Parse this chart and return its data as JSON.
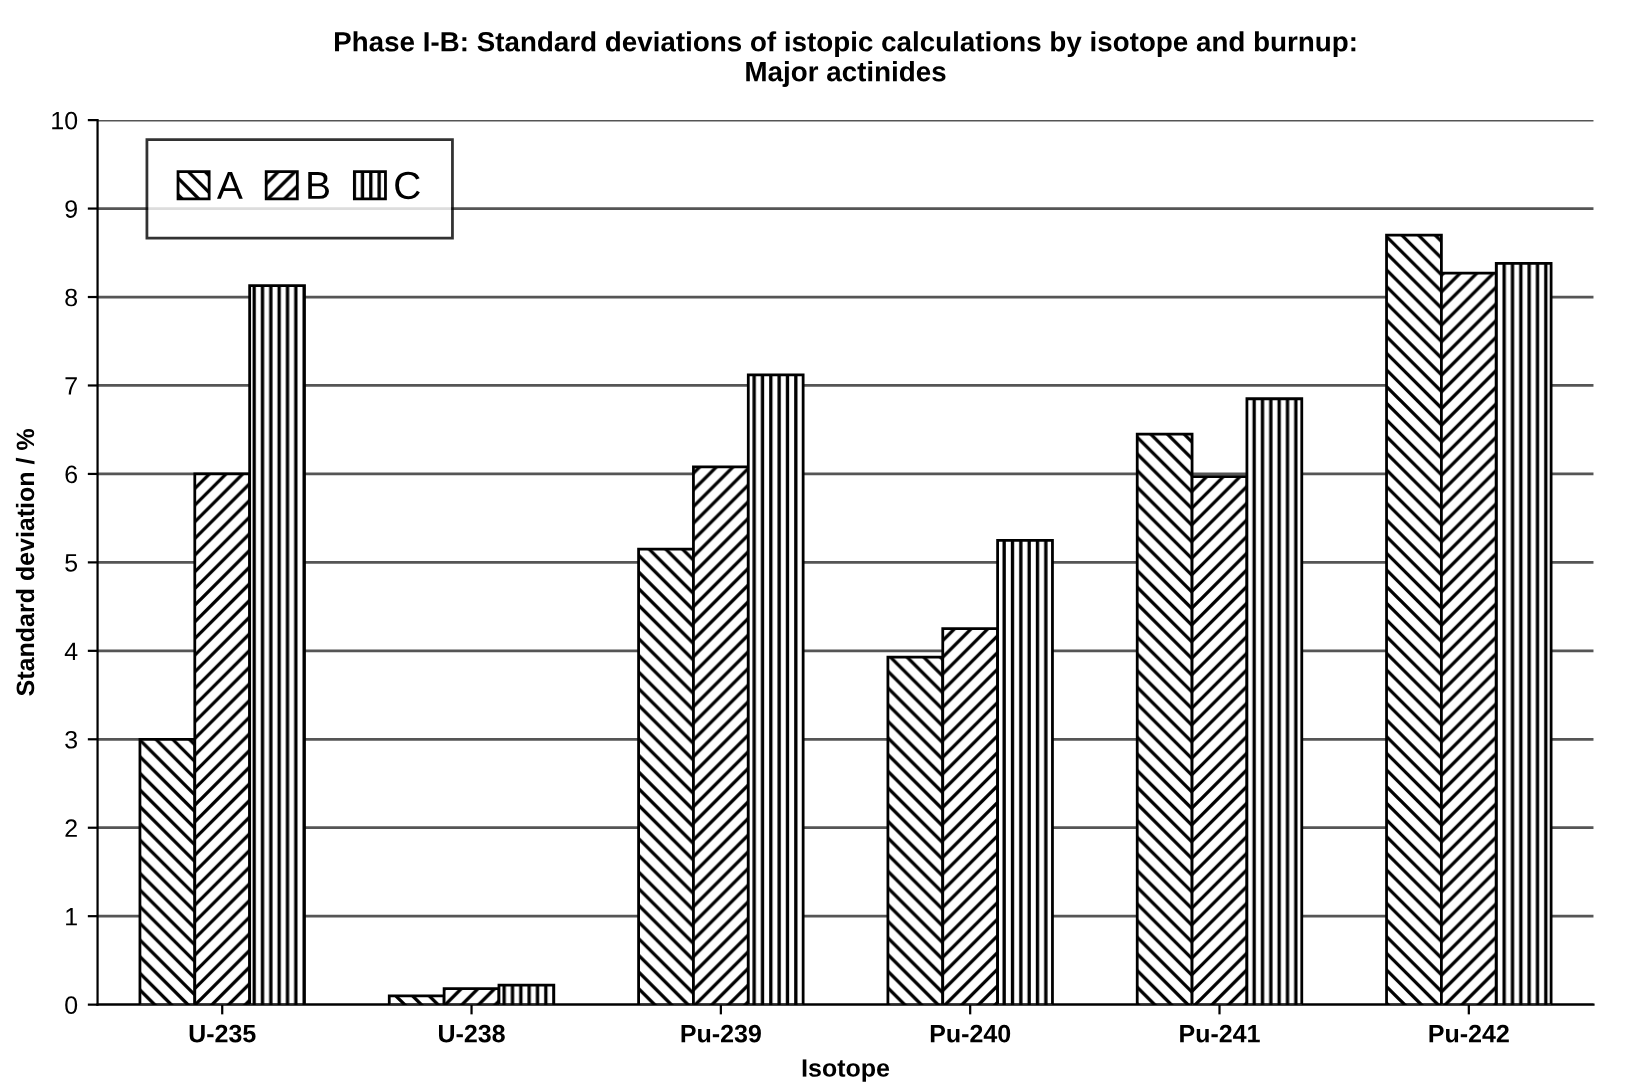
{
  "chart_data": {
    "type": "bar",
    "title": "Phase I-B: Standard deviations of istopic calculations by isotope and burnup:\nMajor actinides",
    "xlabel": "Isotope",
    "ylabel": "Standard deviation / %",
    "categories": [
      "U-235",
      "U-238",
      "Pu-239",
      "Pu-240",
      "Pu-241",
      "Pu-242"
    ],
    "series": [
      {
        "name": "A",
        "color": "#000000",
        "values": [
          3.0,
          0.1,
          5.15,
          3.93,
          6.45,
          8.7
        ]
      },
      {
        "name": "B",
        "color": "#000000",
        "values": [
          6.0,
          0.18,
          6.08,
          4.25,
          5.97,
          8.27
        ]
      },
      {
        "name": "C",
        "color": "#000000",
        "values": [
          8.13,
          0.22,
          7.12,
          5.25,
          6.85,
          8.38
        ]
      }
    ],
    "ylim": [
      0,
      10
    ],
    "yticks": [
      0,
      1,
      2,
      3,
      4,
      5,
      6,
      7,
      8,
      9,
      10
    ],
    "grid": "y",
    "legend": "top left"
  }
}
